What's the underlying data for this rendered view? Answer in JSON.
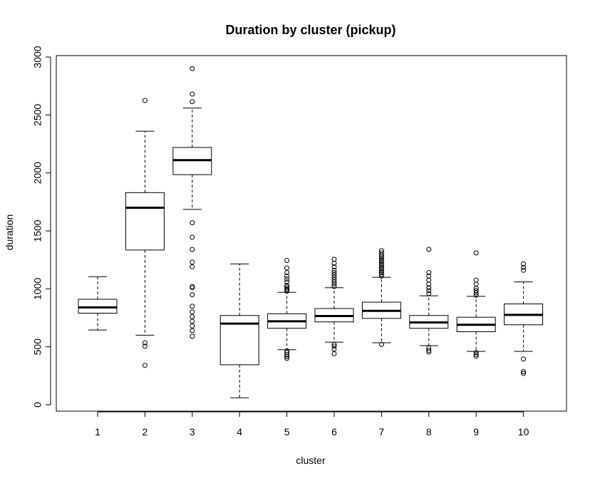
{
  "chart_data": {
    "type": "boxplot",
    "title": "Duration by cluster (pickup)",
    "xlabel": "cluster",
    "ylabel": "duration",
    "ylim": [
      0,
      3000
    ],
    "yticks": [
      "0",
      "500",
      "1000",
      "1500",
      "2000",
      "2500",
      "3000"
    ],
    "categories": [
      "1",
      "2",
      "3",
      "4",
      "5",
      "6",
      "7",
      "8",
      "9",
      "10"
    ],
    "boxes": [
      {
        "cluster": "1",
        "whisker_low": 645,
        "q1": 790,
        "median": 840,
        "q3": 910,
        "whisker_high": 1105,
        "outliers": []
      },
      {
        "cluster": "2",
        "whisker_low": 600,
        "q1": 1335,
        "median": 1700,
        "q3": 1830,
        "whisker_high": 2360,
        "outliers": [
          340,
          505,
          535,
          2625
        ]
      },
      {
        "cluster": "3",
        "whisker_low": 1685,
        "q1": 1985,
        "median": 2110,
        "q3": 2220,
        "whisker_high": 2560,
        "outliers": [
          590,
          640,
          680,
          720,
          760,
          800,
          850,
          950,
          1010,
          1020,
          1190,
          1230,
          1340,
          1445,
          1570,
          2615,
          2680,
          2900
        ]
      },
      {
        "cluster": "4",
        "whisker_low": 60,
        "q1": 345,
        "median": 700,
        "q3": 770,
        "whisker_high": 1215,
        "outliers": []
      },
      {
        "cluster": "5",
        "whisker_low": 475,
        "q1": 660,
        "median": 720,
        "q3": 785,
        "whisker_high": 970,
        "outliers": [
          400,
          415,
          430,
          450,
          465,
          980,
          990,
          1000,
          1015,
          1030,
          1060,
          1085,
          1110,
          1140,
          1180,
          1245
        ]
      },
      {
        "cluster": "6",
        "whisker_low": 540,
        "q1": 715,
        "median": 765,
        "q3": 830,
        "whisker_high": 1010,
        "outliers": [
          440,
          480,
          505,
          520,
          1020,
          1040,
          1060,
          1080,
          1100,
          1120,
          1140,
          1160,
          1190,
          1220,
          1255
        ]
      },
      {
        "cluster": "7",
        "whisker_low": 535,
        "q1": 745,
        "median": 810,
        "q3": 885,
        "whisker_high": 1100,
        "outliers": [
          520,
          1110,
          1125,
          1140,
          1155,
          1170,
          1185,
          1200,
          1215,
          1230,
          1245,
          1260,
          1275,
          1290,
          1310,
          1330
        ]
      },
      {
        "cluster": "8",
        "whisker_low": 510,
        "q1": 660,
        "median": 710,
        "q3": 770,
        "whisker_high": 940,
        "outliers": [
          455,
          470,
          490,
          960,
          985,
          1010,
          1040,
          1075,
          1110,
          1140,
          1340
        ]
      },
      {
        "cluster": "9",
        "whisker_low": 460,
        "q1": 630,
        "median": 690,
        "q3": 755,
        "whisker_high": 935,
        "outliers": [
          420,
          435,
          450,
          945,
          965,
          985,
          1005,
          1040,
          1075,
          1310
        ]
      },
      {
        "cluster": "10",
        "whisker_low": 460,
        "q1": 690,
        "median": 775,
        "q3": 870,
        "whisker_high": 1060,
        "outliers": [
          270,
          285,
          395,
          1160,
          1185,
          1215
        ]
      }
    ]
  }
}
